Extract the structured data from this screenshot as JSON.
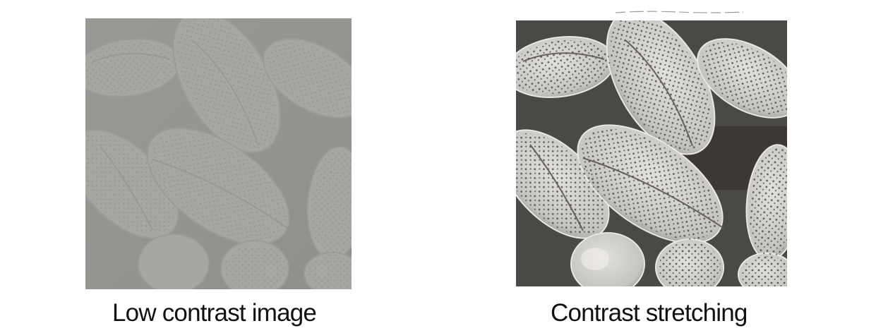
{
  "panels": [
    {
      "id": "low_contrast",
      "caption": "Low contrast image"
    },
    {
      "id": "contrast_stretching",
      "caption": "Contrast stretching"
    }
  ],
  "colors": {
    "low_contrast_background": "#95958f",
    "low_contrast_cell": "#a9a8a2",
    "stretch_background": "#4a4845",
    "stretch_cell": "#cfcdc7",
    "caption_text": "#111111"
  }
}
